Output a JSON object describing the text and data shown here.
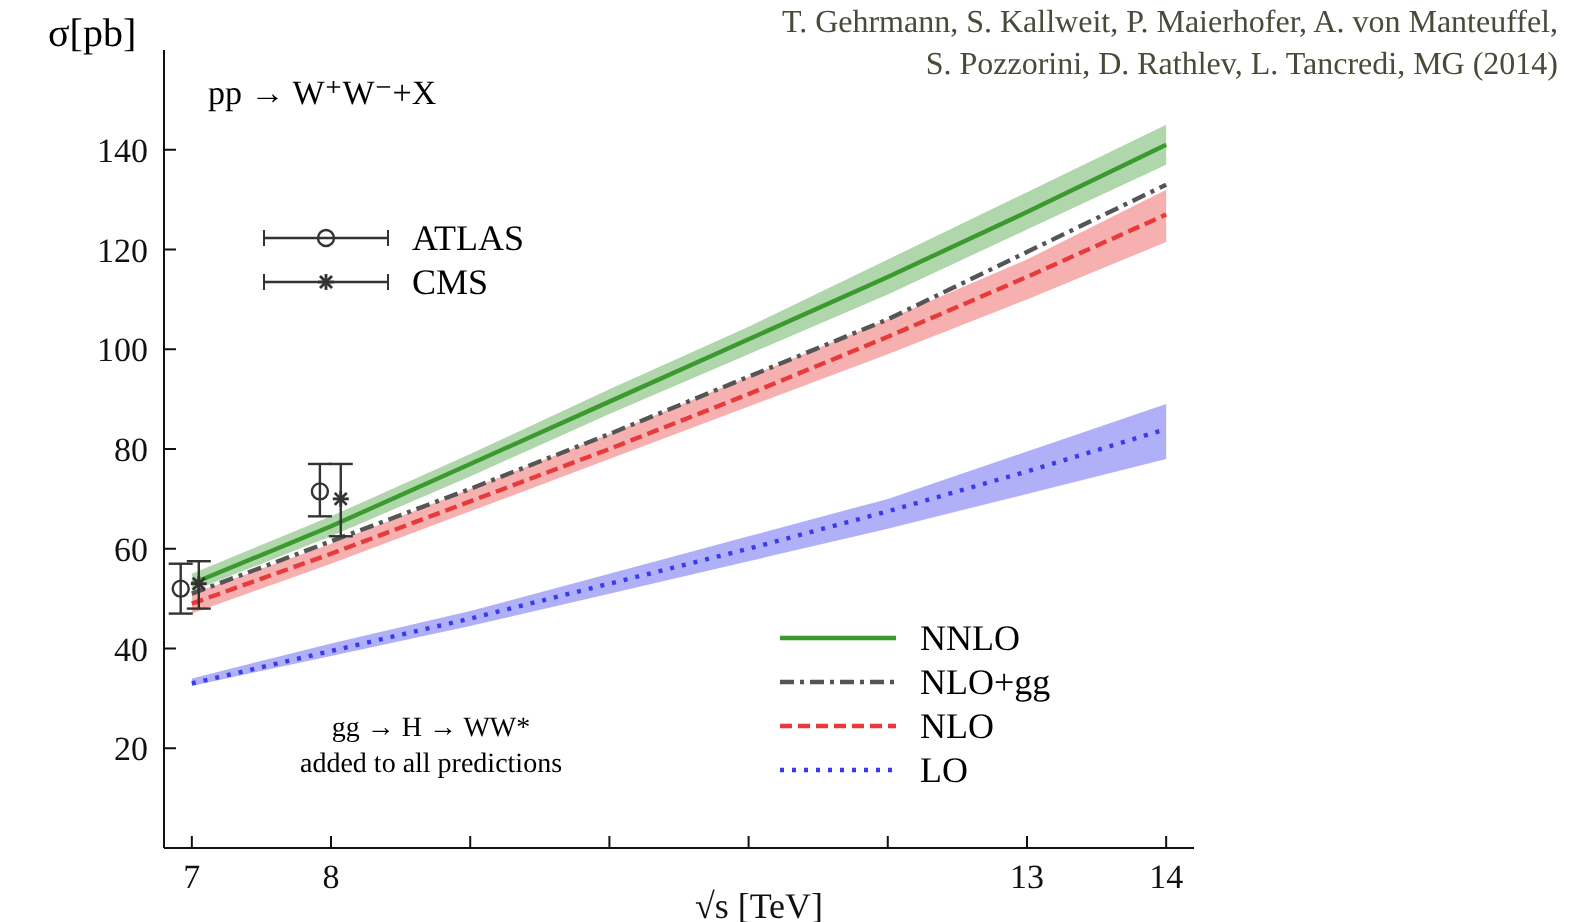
{
  "chart_data": {
    "type": "line",
    "ylabel": "σ[pb]",
    "xlabel": "√s [TeV]",
    "annotations": [
      "pp → W⁺W⁻+X",
      "gg → H → WW*\nadded to all predictions",
      "T. Gehrmann, S. Kallweit, P. Maierhofer, A. von Manteuffel,\nS. Pozzorini, D. Rathlev, L. Tancredi, MG (2014)"
    ],
    "xlim": [
      6.8,
      14.2
    ],
    "xticks": [
      7,
      8,
      {
        "value": 9,
        "label": null
      },
      {
        "value": 10,
        "label": null
      },
      {
        "value": 11,
        "label": null
      },
      {
        "value": 12,
        "label": null
      },
      13,
      14
    ],
    "ylim": [
      0,
      160
    ],
    "yticks": [
      20,
      40,
      60,
      80,
      100,
      120,
      140
    ],
    "grid": false,
    "legend": "bottom right",
    "series": [
      {
        "name": "NNLO",
        "color": "#3a9a2e",
        "line_style": "solid",
        "x": [
          7,
          8,
          9,
          10,
          11,
          12,
          13,
          14
        ],
        "values": [
          53,
          64.5,
          77,
          89.5,
          102,
          114.5,
          127.5,
          141
        ],
        "lower": [
          51.5,
          62.5,
          74.5,
          87,
          99,
          111,
          124,
          137
        ],
        "upper": [
          55,
          66.5,
          79,
          92,
          104.5,
          118,
          131.5,
          145
        ]
      },
      {
        "name": "NLO+gg",
        "color": "#555555",
        "line_style": "dashdot",
        "x": [
          7,
          8,
          9,
          10,
          11,
          12,
          13,
          14
        ],
        "values": [
          51,
          61.5,
          72,
          83,
          94.5,
          106,
          119.5,
          133
        ]
      },
      {
        "name": "NLO",
        "color": "#e83a3a",
        "line_style": "dashed",
        "x": [
          7,
          8,
          9,
          10,
          11,
          12,
          13,
          14
        ],
        "values": [
          49,
          59,
          69.5,
          80,
          91,
          102.5,
          114.5,
          127
        ],
        "lower": [
          47,
          57,
          67.5,
          78,
          88.5,
          99,
          110,
          121.5
        ],
        "upper": [
          51,
          61,
          72,
          83,
          94.5,
          106,
          118,
          132
        ]
      },
      {
        "name": "LO",
        "color": "#3a3aee",
        "line_style": "dotted",
        "x": [
          7,
          8,
          9,
          10,
          11,
          12,
          13,
          14
        ],
        "values": [
          33,
          39.5,
          46,
          53,
          60,
          67.5,
          75.5,
          84
        ],
        "lower": [
          32.5,
          38.5,
          44.5,
          51,
          57.5,
          64,
          71,
          78
        ],
        "upper": [
          34,
          41,
          47.5,
          55,
          62.5,
          70,
          79.5,
          89
        ]
      },
      {
        "name": "ATLAS",
        "type": "scatter",
        "marker": "circle",
        "color": "#333333",
        "x": [
          6.92,
          7.92
        ],
        "values": [
          52,
          71.5
        ],
        "errors": [
          [
            47,
            57
          ],
          [
            66.5,
            77
          ]
        ]
      },
      {
        "name": "CMS",
        "type": "scatter",
        "marker": "cross",
        "color": "#333333",
        "x": [
          7.05,
          8.07
        ],
        "values": [
          53,
          70
        ],
        "errors": [
          [
            48,
            57.5
          ],
          [
            62.5,
            77
          ]
        ]
      }
    ]
  }
}
